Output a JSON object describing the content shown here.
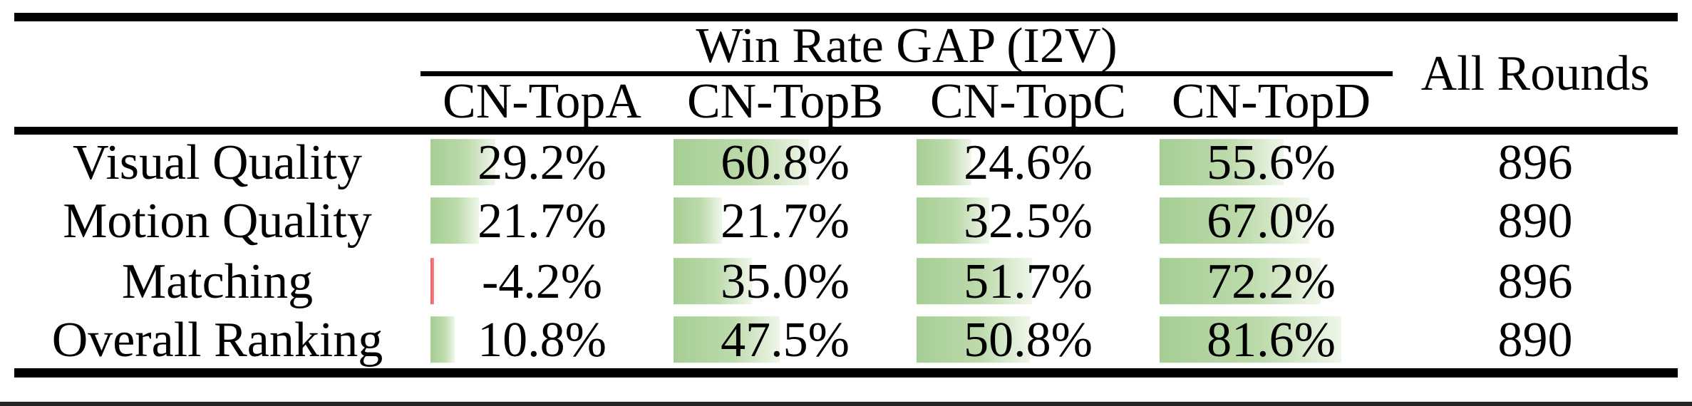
{
  "table": {
    "title": "Win Rate GAP (I2V)",
    "all_rounds_header": "All Rounds",
    "column_headers": [
      "CN-TopA",
      "CN-TopB",
      "CN-TopC",
      "CN-TopD"
    ],
    "rows": [
      {
        "label": "Visual Quality",
        "values": [
          "29.2%",
          "60.8%",
          "24.6%",
          "55.6%"
        ],
        "bar_values": [
          29.2,
          60.8,
          24.6,
          55.6
        ],
        "all_rounds": "896"
      },
      {
        "label": "Motion Quality",
        "values": [
          "21.7%",
          "21.7%",
          "32.5%",
          "67.0%"
        ],
        "bar_values": [
          21.7,
          21.7,
          32.5,
          67.0
        ],
        "all_rounds": "890"
      },
      {
        "label": "Matching",
        "values": [
          "-4.2%",
          "35.0%",
          "51.7%",
          "72.2%"
        ],
        "bar_values": [
          -4.2,
          35.0,
          51.7,
          72.2
        ],
        "all_rounds": "896"
      },
      {
        "label": "Overall Ranking",
        "values": [
          "10.8%",
          "47.5%",
          "50.8%",
          "81.6%"
        ],
        "bar_values": [
          10.8,
          47.5,
          50.8,
          81.6
        ],
        "all_rounds": "890"
      }
    ]
  },
  "colors": {
    "positive_bar_start": "#a6ce94",
    "positive_bar_mid": "#bcdaab",
    "positive_bar_end": "#eff6e9",
    "negative_bar": "#f05a5e",
    "negative_bar_light": "#f58a8c",
    "rule_color": "#000000",
    "text_color": "#000000"
  },
  "chart_data": {
    "type": "table",
    "title": "Win Rate GAP (I2V)",
    "columns": [
      "",
      "CN-TopA",
      "CN-TopB",
      "CN-TopC",
      "CN-TopD",
      "All Rounds"
    ],
    "rows": [
      [
        "Visual Quality",
        29.2,
        60.8,
        24.6,
        55.6,
        896
      ],
      [
        "Motion Quality",
        21.7,
        21.7,
        32.5,
        67.0,
        890
      ],
      [
        "Matching",
        -4.2,
        35.0,
        51.7,
        72.2,
        896
      ],
      [
        "Overall Ranking",
        10.8,
        47.5,
        50.8,
        81.6,
        890
      ]
    ],
    "value_format": "percent for CN columns, integer counts for All Rounds",
    "bar_style": "in-cell green gradient data bars proportional to value; thin red bar for negative values",
    "legend_position": "none",
    "grid": false
  }
}
